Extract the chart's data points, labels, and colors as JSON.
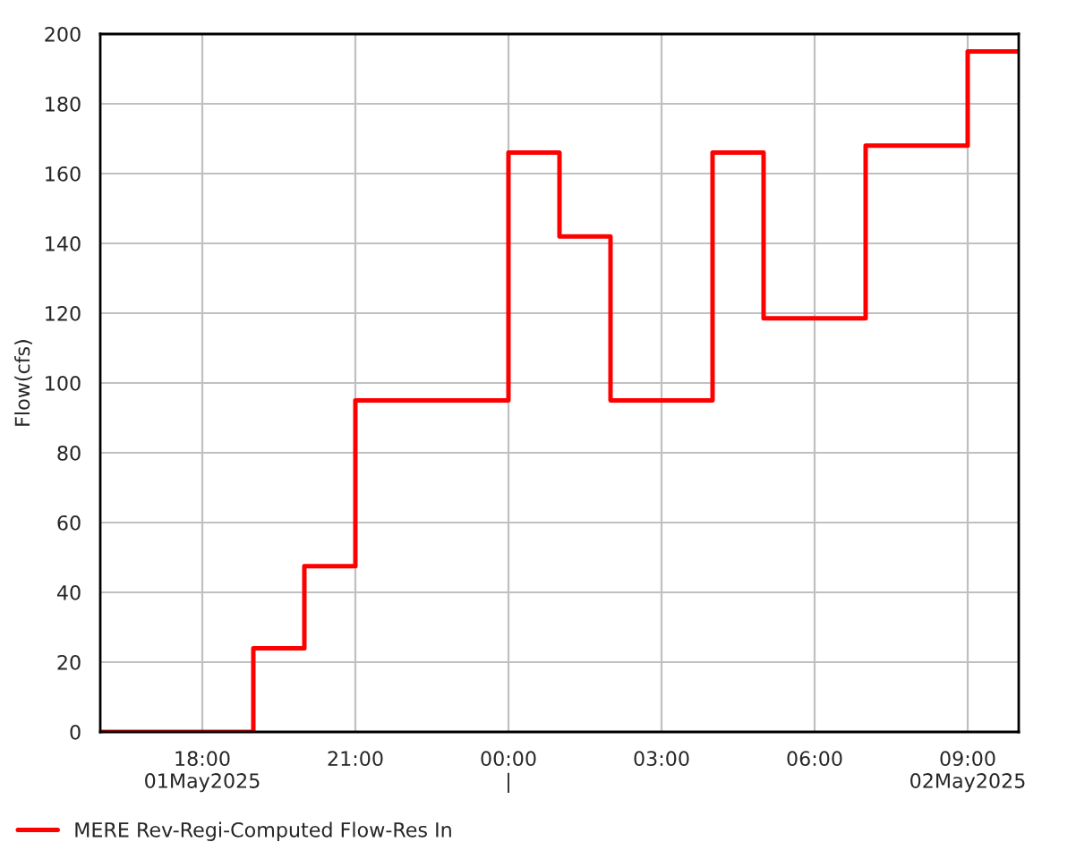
{
  "chart_data": {
    "type": "step",
    "ylabel": "Flow(cfs)",
    "x": [
      "2025-05-01T16:00",
      "2025-05-01T19:00",
      "2025-05-01T20:00",
      "2025-05-01T21:00",
      "2025-05-02T00:00",
      "2025-05-02T01:00",
      "2025-05-02T02:00",
      "2025-05-02T04:00",
      "2025-05-02T05:00",
      "2025-05-02T07:00",
      "2025-05-02T09:00",
      "2025-05-02T10:00"
    ],
    "series": [
      {
        "name": "MERE Rev-Regi-Computed Flow-Res In",
        "color": "#ff0000",
        "values": [
          0,
          24,
          47.5,
          95,
          166,
          142,
          95,
          166,
          118.5,
          168,
          195,
          195
        ]
      }
    ],
    "xlim": [
      "2025-05-01T16:00",
      "2025-05-02T10:00"
    ],
    "xticks": [
      {
        "value": "2025-05-01T18:00",
        "label": "18:00\n01May2025"
      },
      {
        "value": "2025-05-01T21:00",
        "label": "21:00"
      },
      {
        "value": "2025-05-02T00:00",
        "label": "00:00\n|"
      },
      {
        "value": "2025-05-02T03:00",
        "label": "03:00"
      },
      {
        "value": "2025-05-02T06:00",
        "label": "06:00"
      },
      {
        "value": "2025-05-02T09:00",
        "label": "09:00\n02May2025"
      }
    ],
    "ylim": [
      0,
      200
    ],
    "yticks": [
      0,
      20,
      40,
      60,
      80,
      100,
      120,
      140,
      160,
      180,
      200
    ],
    "grid": true,
    "legend": "bottom",
    "line_style": "solid",
    "marker": "none"
  }
}
